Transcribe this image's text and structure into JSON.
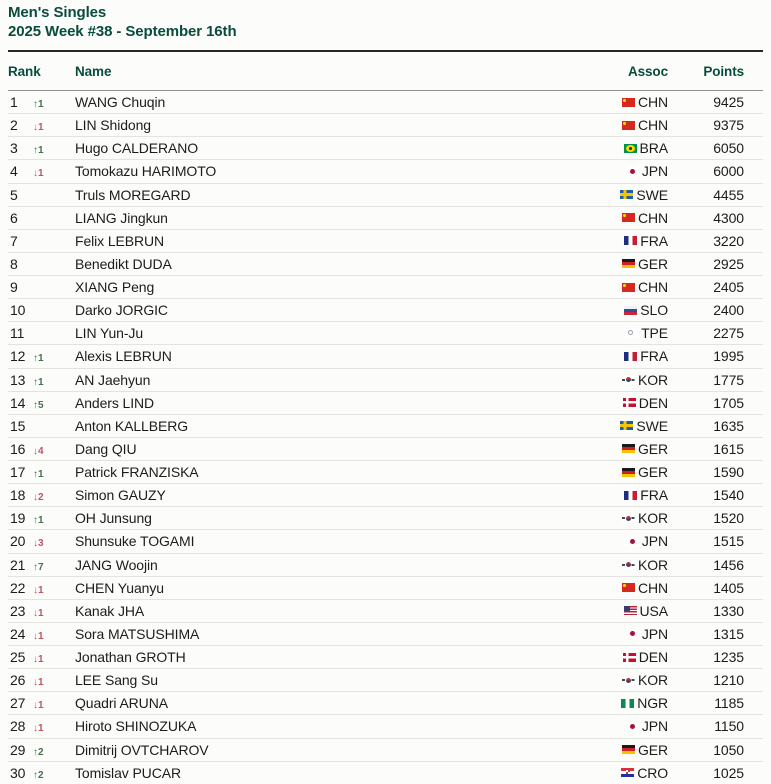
{
  "header": {
    "title": "Men's Singles",
    "subtitle": "2025 Week #38 - September 16th"
  },
  "symbols": {
    "up_arrow": "↑",
    "down_arrow": "↓"
  },
  "colors": {
    "accent_green": "#084d3c",
    "up_change": "#47704d",
    "down_change": "#bf5465"
  },
  "table": {
    "columns": {
      "rank": "Rank",
      "name": "Name",
      "assoc": "Assoc",
      "points": "Points"
    },
    "rows": [
      {
        "rank": 1,
        "change_dir": "up",
        "change_value": 1,
        "name": "WANG Chuqin",
        "assoc": "CHN",
        "points": 9425
      },
      {
        "rank": 2,
        "change_dir": "down",
        "change_value": 1,
        "name": "LIN Shidong",
        "assoc": "CHN",
        "points": 9375
      },
      {
        "rank": 3,
        "change_dir": "up",
        "change_value": 1,
        "name": "Hugo CALDERANO",
        "assoc": "BRA",
        "points": 6050
      },
      {
        "rank": 4,
        "change_dir": "down",
        "change_value": 1,
        "name": "Tomokazu HARIMOTO",
        "assoc": "JPN",
        "points": 6000
      },
      {
        "rank": 5,
        "change_dir": "none",
        "change_value": null,
        "name": "Truls MOREGARD",
        "assoc": "SWE",
        "points": 4455
      },
      {
        "rank": 6,
        "change_dir": "none",
        "change_value": null,
        "name": "LIANG Jingkun",
        "assoc": "CHN",
        "points": 4300
      },
      {
        "rank": 7,
        "change_dir": "none",
        "change_value": null,
        "name": "Felix LEBRUN",
        "assoc": "FRA",
        "points": 3220
      },
      {
        "rank": 8,
        "change_dir": "none",
        "change_value": null,
        "name": "Benedikt DUDA",
        "assoc": "GER",
        "points": 2925
      },
      {
        "rank": 9,
        "change_dir": "none",
        "change_value": null,
        "name": "XIANG Peng",
        "assoc": "CHN",
        "points": 2405
      },
      {
        "rank": 10,
        "change_dir": "none",
        "change_value": null,
        "name": "Darko JORGIC",
        "assoc": "SLO",
        "points": 2400
      },
      {
        "rank": 11,
        "change_dir": "none",
        "change_value": null,
        "name": "LIN Yun-Ju",
        "assoc": "TPE",
        "points": 2275
      },
      {
        "rank": 12,
        "change_dir": "up",
        "change_value": 1,
        "name": "Alexis LEBRUN",
        "assoc": "FRA",
        "points": 1995
      },
      {
        "rank": 13,
        "change_dir": "up",
        "change_value": 1,
        "name": "AN Jaehyun",
        "assoc": "KOR",
        "points": 1775
      },
      {
        "rank": 14,
        "change_dir": "up",
        "change_value": 5,
        "name": "Anders LIND",
        "assoc": "DEN",
        "points": 1705
      },
      {
        "rank": 15,
        "change_dir": "none",
        "change_value": null,
        "name": "Anton KALLBERG",
        "assoc": "SWE",
        "points": 1635
      },
      {
        "rank": 16,
        "change_dir": "down",
        "change_value": 4,
        "name": "Dang QIU",
        "assoc": "GER",
        "points": 1615
      },
      {
        "rank": 17,
        "change_dir": "up",
        "change_value": 1,
        "name": "Patrick FRANZISKA",
        "assoc": "GER",
        "points": 1590
      },
      {
        "rank": 18,
        "change_dir": "down",
        "change_value": 2,
        "name": "Simon GAUZY",
        "assoc": "FRA",
        "points": 1540
      },
      {
        "rank": 19,
        "change_dir": "up",
        "change_value": 1,
        "name": "OH Junsung",
        "assoc": "KOR",
        "points": 1520
      },
      {
        "rank": 20,
        "change_dir": "down",
        "change_value": 3,
        "name": "Shunsuke TOGAMI",
        "assoc": "JPN",
        "points": 1515
      },
      {
        "rank": 21,
        "change_dir": "up",
        "change_value": 7,
        "name": "JANG Woojin",
        "assoc": "KOR",
        "points": 1456
      },
      {
        "rank": 22,
        "change_dir": "down",
        "change_value": 1,
        "name": "CHEN Yuanyu",
        "assoc": "CHN",
        "points": 1405
      },
      {
        "rank": 23,
        "change_dir": "down",
        "change_value": 1,
        "name": "Kanak JHA",
        "assoc": "USA",
        "points": 1330
      },
      {
        "rank": 24,
        "change_dir": "down",
        "change_value": 1,
        "name": "Sora MATSUSHIMA",
        "assoc": "JPN",
        "points": 1315
      },
      {
        "rank": 25,
        "change_dir": "down",
        "change_value": 1,
        "name": "Jonathan GROTH",
        "assoc": "DEN",
        "points": 1235
      },
      {
        "rank": 26,
        "change_dir": "down",
        "change_value": 1,
        "name": "LEE Sang Su",
        "assoc": "KOR",
        "points": 1210
      },
      {
        "rank": 27,
        "change_dir": "down",
        "change_value": 1,
        "name": "Quadri ARUNA",
        "assoc": "NGR",
        "points": 1185
      },
      {
        "rank": 28,
        "change_dir": "down",
        "change_value": 1,
        "name": "Hiroto SHINOZUKA",
        "assoc": "JPN",
        "points": 1150
      },
      {
        "rank": 29,
        "change_dir": "up",
        "change_value": 2,
        "name": "Dimitrij OVTCHAROV",
        "assoc": "GER",
        "points": 1050
      },
      {
        "rank": 30,
        "change_dir": "up",
        "change_value": 2,
        "name": "Tomislav PUCAR",
        "assoc": "CRO",
        "points": 1025
      }
    ]
  }
}
